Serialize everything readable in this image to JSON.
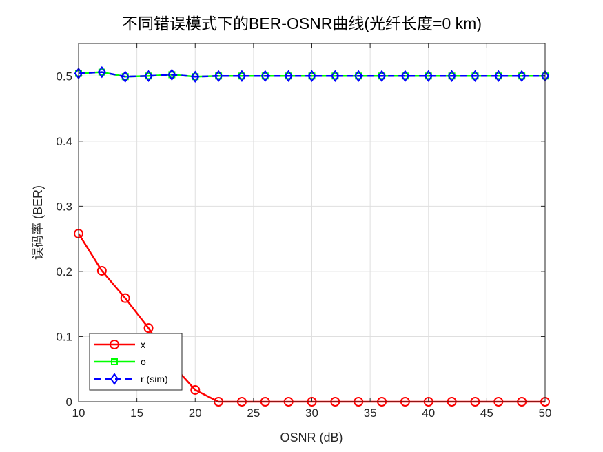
{
  "chart_data": {
    "type": "line",
    "title": "不同错误模式下的BER-OSNR曲线(光纤长度=0 km)",
    "xlabel": "OSNR (dB)",
    "ylabel": "误码率 (BER)",
    "xlim": [
      10,
      50
    ],
    "ylim": [
      0,
      0.55
    ],
    "xticks": [
      10,
      15,
      20,
      25,
      30,
      35,
      40,
      45,
      50
    ],
    "yticks": [
      0,
      0.1,
      0.2,
      0.3,
      0.4,
      0.5
    ],
    "xtick_labels": [
      "10",
      "15",
      "20",
      "25",
      "30",
      "35",
      "40",
      "45",
      "50"
    ],
    "ytick_labels": [
      "0",
      "0.1",
      "0.2",
      "0.3",
      "0.4",
      "0.5"
    ],
    "grid": true,
    "legend_position": "bottom-left",
    "x": [
      10,
      12,
      14,
      16,
      18,
      20,
      22,
      24,
      26,
      28,
      30,
      32,
      34,
      36,
      38,
      40,
      42,
      44,
      46,
      48,
      50
    ],
    "series": [
      {
        "name": "x",
        "color": "#ff0000",
        "marker": "circle",
        "line_style": "solid",
        "values": [
          0.258,
          0.201,
          0.159,
          0.113,
          0.058,
          0.018,
          0,
          0,
          0,
          0,
          0,
          0,
          0,
          0,
          0,
          0,
          0,
          0,
          0,
          0,
          0
        ]
      },
      {
        "name": "o",
        "color": "#00ff00",
        "marker": "square",
        "line_style": "solid",
        "values": [
          0.504,
          0.506,
          0.499,
          0.5,
          0.502,
          0.499,
          0.5,
          0.5,
          0.5,
          0.5,
          0.5,
          0.5,
          0.5,
          0.5,
          0.5,
          0.5,
          0.5,
          0.5,
          0.5,
          0.5,
          0.5
        ]
      },
      {
        "name": "r (sim)",
        "color": "#0000ff",
        "marker": "diamond",
        "line_style": "dashed",
        "values": [
          0.504,
          0.506,
          0.499,
          0.5,
          0.502,
          0.499,
          0.5,
          0.5,
          0.5,
          0.5,
          0.5,
          0.5,
          0.5,
          0.5,
          0.5,
          0.5,
          0.5,
          0.5,
          0.5,
          0.5,
          0.5
        ]
      }
    ]
  }
}
